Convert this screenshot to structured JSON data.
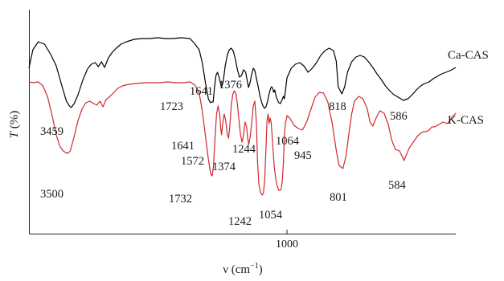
{
  "chart_data": {
    "type": "line",
    "xlabel": "ν (cm⁻¹)",
    "xlabel_parts": {
      "main": "ν (cm",
      "sup": "−1",
      "end": ")"
    },
    "ylabel": "T (%)",
    "ylabel_parts": {
      "italic": "T",
      "rest": " (%)"
    },
    "x_reversed": true,
    "xlim": [
      4000,
      400
    ],
    "x_ticks": [
      {
        "value": 1000,
        "label": "1000"
      }
    ],
    "grid": false,
    "y_ticks": [],
    "legend": "labels at right end of each trace",
    "series": [
      {
        "name": "Ca-CAS",
        "color": "#000000",
        "points": [
          [
            4000,
            0.63
          ],
          [
            3950,
            0.4
          ],
          [
            3880,
            0.3
          ],
          [
            3800,
            0.33
          ],
          [
            3720,
            0.46
          ],
          [
            3650,
            0.6
          ],
          [
            3580,
            0.84
          ],
          [
            3520,
            1.04
          ],
          [
            3480,
            1.1
          ],
          [
            3459,
            1.12
          ],
          [
            3420,
            1.07
          ],
          [
            3370,
            0.96
          ],
          [
            3310,
            0.78
          ],
          [
            3250,
            0.64
          ],
          [
            3200,
            0.58
          ],
          [
            3150,
            0.56
          ],
          [
            3110,
            0.61
          ],
          [
            3070,
            0.55
          ],
          [
            3030,
            0.62
          ],
          [
            2980,
            0.5
          ],
          [
            2930,
            0.43
          ],
          [
            2880,
            0.38
          ],
          [
            2820,
            0.33
          ],
          [
            2750,
            0.3
          ],
          [
            2650,
            0.27
          ],
          [
            2550,
            0.26
          ],
          [
            2450,
            0.26
          ],
          [
            2350,
            0.25
          ],
          [
            2250,
            0.26
          ],
          [
            2150,
            0.26
          ],
          [
            2050,
            0.25
          ],
          [
            1950,
            0.26
          ],
          [
            1900,
            0.33
          ],
          [
            1860,
            0.4
          ],
          [
            1830,
            0.56
          ],
          [
            1800,
            0.8
          ],
          [
            1770,
            1.01
          ],
          [
            1750,
            1.06
          ],
          [
            1735,
            1.05
          ],
          [
            1723,
            1.05
          ],
          [
            1710,
            0.87
          ],
          [
            1695,
            0.72
          ],
          [
            1680,
            0.68
          ],
          [
            1665,
            0.74
          ],
          [
            1650,
            0.82
          ],
          [
            1641,
            0.87
          ],
          [
            1625,
            0.8
          ],
          [
            1605,
            0.6
          ],
          [
            1585,
            0.47
          ],
          [
            1565,
            0.4
          ],
          [
            1545,
            0.38
          ],
          [
            1525,
            0.42
          ],
          [
            1505,
            0.52
          ],
          [
            1485,
            0.65
          ],
          [
            1465,
            0.74
          ],
          [
            1445,
            0.72
          ],
          [
            1425,
            0.65
          ],
          [
            1405,
            0.68
          ],
          [
            1390,
            0.78
          ],
          [
            1376,
            0.87
          ],
          [
            1360,
            0.8
          ],
          [
            1345,
            0.7
          ],
          [
            1330,
            0.63
          ],
          [
            1315,
            0.66
          ],
          [
            1295,
            0.78
          ],
          [
            1280,
            0.87
          ],
          [
            1265,
            0.97
          ],
          [
            1250,
            1.05
          ],
          [
            1235,
            1.1
          ],
          [
            1220,
            1.13
          ],
          [
            1205,
            1.11
          ],
          [
            1190,
            1.04
          ],
          [
            1175,
            0.95
          ],
          [
            1160,
            0.88
          ],
          [
            1150,
            0.86
          ],
          [
            1140,
            0.88
          ],
          [
            1130,
            0.93
          ],
          [
            1120,
            0.9
          ],
          [
            1110,
            0.96
          ],
          [
            1095,
            1.02
          ],
          [
            1080,
            1.06
          ],
          [
            1064,
            1.07
          ],
          [
            1050,
            1.03
          ],
          [
            1035,
            0.98
          ],
          [
            1025,
            1.01
          ],
          [
            1015,
            0.91
          ],
          [
            1000,
            0.75
          ],
          [
            985,
            0.63
          ],
          [
            970,
            0.58
          ],
          [
            955,
            0.56
          ],
          [
            940,
            0.6
          ],
          [
            925,
            0.68
          ],
          [
            910,
            0.63
          ],
          [
            895,
            0.56
          ],
          [
            880,
            0.47
          ],
          [
            865,
            0.41
          ],
          [
            850,
            0.38
          ],
          [
            835,
            0.41
          ],
          [
            825,
            0.54
          ],
          [
            818,
            0.86
          ],
          [
            805,
            0.95
          ],
          [
            795,
            0.86
          ],
          [
            785,
            0.68
          ],
          [
            770,
            0.55
          ],
          [
            755,
            0.49
          ],
          [
            740,
            0.47
          ],
          [
            725,
            0.49
          ],
          [
            710,
            0.55
          ],
          [
            695,
            0.62
          ],
          [
            680,
            0.7
          ],
          [
            665,
            0.77
          ],
          [
            650,
            0.85
          ],
          [
            635,
            0.91
          ],
          [
            620,
            0.96
          ],
          [
            605,
            0.99
          ],
          [
            586,
            1.03
          ],
          [
            570,
            1.01
          ],
          [
            555,
            0.96
          ],
          [
            540,
            0.9
          ],
          [
            525,
            0.85
          ],
          [
            510,
            0.82
          ],
          [
            495,
            0.8
          ],
          [
            480,
            0.76
          ],
          [
            465,
            0.73
          ],
          [
            450,
            0.7
          ],
          [
            435,
            0.68
          ],
          [
            420,
            0.66
          ],
          [
            400,
            0.62
          ]
        ]
      },
      {
        "name": "K-CAS",
        "color": "#d0282d",
        "points": [
          [
            4000,
            0.8
          ],
          [
            3950,
            0.81
          ],
          [
            3880,
            0.8
          ],
          [
            3820,
            0.85
          ],
          [
            3760,
            0.99
          ],
          [
            3700,
            1.23
          ],
          [
            3650,
            1.46
          ],
          [
            3600,
            1.61
          ],
          [
            3560,
            1.66
          ],
          [
            3530,
            1.68
          ],
          [
            3500,
            1.69
          ],
          [
            3470,
            1.66
          ],
          [
            3420,
            1.48
          ],
          [
            3370,
            1.28
          ],
          [
            3320,
            1.14
          ],
          [
            3270,
            1.06
          ],
          [
            3220,
            1.04
          ],
          [
            3170,
            1.07
          ],
          [
            3130,
            1.09
          ],
          [
            3090,
            1.04
          ],
          [
            3050,
            1.11
          ],
          [
            3010,
            1.02
          ],
          [
            2960,
            0.98
          ],
          [
            2910,
            0.93
          ],
          [
            2860,
            0.88
          ],
          [
            2800,
            0.85
          ],
          [
            2720,
            0.83
          ],
          [
            2620,
            0.82
          ],
          [
            2520,
            0.81
          ],
          [
            2420,
            0.81
          ],
          [
            2320,
            0.81
          ],
          [
            2220,
            0.8
          ],
          [
            2120,
            0.81
          ],
          [
            2020,
            0.81
          ],
          [
            1950,
            0.8
          ],
          [
            1900,
            0.84
          ],
          [
            1860,
            0.94
          ],
          [
            1830,
            1.16
          ],
          [
            1800,
            1.46
          ],
          [
            1770,
            1.76
          ],
          [
            1750,
            1.93
          ],
          [
            1742,
            1.96
          ],
          [
            1732,
            1.97
          ],
          [
            1720,
            1.85
          ],
          [
            1705,
            1.5
          ],
          [
            1690,
            1.2
          ],
          [
            1675,
            1.1
          ],
          [
            1660,
            1.2
          ],
          [
            1648,
            1.38
          ],
          [
            1641,
            1.46
          ],
          [
            1630,
            1.32
          ],
          [
            1615,
            1.2
          ],
          [
            1600,
            1.28
          ],
          [
            1585,
            1.45
          ],
          [
            1572,
            1.5
          ],
          [
            1560,
            1.35
          ],
          [
            1545,
            1.08
          ],
          [
            1530,
            0.95
          ],
          [
            1515,
            0.91
          ],
          [
            1500,
            0.95
          ],
          [
            1485,
            1.08
          ],
          [
            1470,
            1.28
          ],
          [
            1455,
            1.46
          ],
          [
            1440,
            1.55
          ],
          [
            1425,
            1.46
          ],
          [
            1410,
            1.3
          ],
          [
            1395,
            1.36
          ],
          [
            1385,
            1.5
          ],
          [
            1374,
            1.58
          ],
          [
            1360,
            1.48
          ],
          [
            1345,
            1.3
          ],
          [
            1330,
            1.1
          ],
          [
            1315,
            1.04
          ],
          [
            1300,
            1.3
          ],
          [
            1288,
            1.8
          ],
          [
            1275,
            2.08
          ],
          [
            1260,
            2.17
          ],
          [
            1250,
            2.2
          ],
          [
            1242,
            2.21
          ],
          [
            1230,
            2.18
          ],
          [
            1218,
            2.02
          ],
          [
            1205,
            1.6
          ],
          [
            1195,
            1.28
          ],
          [
            1185,
            1.2
          ],
          [
            1175,
            1.32
          ],
          [
            1165,
            1.25
          ],
          [
            1155,
            1.3
          ],
          [
            1145,
            1.48
          ],
          [
            1135,
            1.67
          ],
          [
            1125,
            1.85
          ],
          [
            1110,
            2.0
          ],
          [
            1095,
            2.1
          ],
          [
            1080,
            2.15
          ],
          [
            1065,
            2.15
          ],
          [
            1054,
            2.12
          ],
          [
            1045,
            2.02
          ],
          [
            1035,
            1.8
          ],
          [
            1025,
            1.47
          ],
          [
            1015,
            1.3
          ],
          [
            1008,
            1.28
          ],
          [
            1000,
            1.22
          ],
          [
            990,
            1.25
          ],
          [
            975,
            1.34
          ],
          [
            960,
            1.38
          ],
          [
            945,
            1.4
          ],
          [
            930,
            1.3
          ],
          [
            915,
            1.14
          ],
          [
            900,
            0.99
          ],
          [
            885,
            0.93
          ],
          [
            870,
            0.94
          ],
          [
            855,
            1.05
          ],
          [
            840,
            1.3
          ],
          [
            825,
            1.65
          ],
          [
            815,
            1.84
          ],
          [
            801,
            1.88
          ],
          [
            790,
            1.72
          ],
          [
            780,
            1.45
          ],
          [
            770,
            1.2
          ],
          [
            760,
            1.04
          ],
          [
            745,
            0.98
          ],
          [
            730,
            1.01
          ],
          [
            715,
            1.13
          ],
          [
            705,
            1.3
          ],
          [
            695,
            1.35
          ],
          [
            682,
            1.24
          ],
          [
            670,
            1.16
          ],
          [
            655,
            1.19
          ],
          [
            640,
            1.33
          ],
          [
            628,
            1.52
          ],
          [
            615,
            1.64
          ],
          [
            600,
            1.66
          ],
          [
            590,
            1.73
          ],
          [
            584,
            1.78
          ],
          [
            575,
            1.7
          ],
          [
            565,
            1.62
          ],
          [
            555,
            1.57
          ],
          [
            545,
            1.52
          ],
          [
            535,
            1.47
          ],
          [
            525,
            1.44
          ],
          [
            515,
            1.42
          ],
          [
            505,
            1.42
          ],
          [
            495,
            1.4
          ],
          [
            485,
            1.36
          ],
          [
            475,
            1.36
          ],
          [
            460,
            1.33
          ],
          [
            445,
            1.3
          ],
          [
            430,
            1.32
          ],
          [
            415,
            1.25
          ],
          [
            400,
            1.19
          ]
        ]
      }
    ],
    "annotations": [
      {
        "text": "3459",
        "x": 3459,
        "series": "Ca-CAS"
      },
      {
        "text": "1723",
        "x": 1723,
        "series": "Ca-CAS"
      },
      {
        "text": "1641",
        "x": 1641,
        "series": "Ca-CAS"
      },
      {
        "text": "1376",
        "x": 1376,
        "series": "Ca-CAS"
      },
      {
        "text": "1064",
        "x": 1064,
        "series": "Ca-CAS"
      },
      {
        "text": "818",
        "x": 818,
        "series": "Ca-CAS"
      },
      {
        "text": "586",
        "x": 586,
        "series": "Ca-CAS"
      },
      {
        "text": "3500",
        "x": 3500,
        "series": "K-CAS"
      },
      {
        "text": "1641",
        "x": 1641,
        "series": "K-CAS"
      },
      {
        "text": "1572",
        "x": 1572,
        "series": "K-CAS"
      },
      {
        "text": "1374",
        "x": 1374,
        "series": "K-CAS"
      },
      {
        "text": "1244",
        "x": 1244,
        "series": "K-CAS"
      },
      {
        "text": "945",
        "x": 945,
        "series": "K-CAS"
      },
      {
        "text": "1732",
        "x": 1732,
        "series": "K-CAS"
      },
      {
        "text": "1242",
        "x": 1242,
        "series": "K-CAS"
      },
      {
        "text": "1054",
        "x": 1054,
        "series": "K-CAS"
      },
      {
        "text": "801",
        "x": 801,
        "series": "K-CAS"
      },
      {
        "text": "584",
        "x": 584,
        "series": "K-CAS"
      }
    ]
  }
}
